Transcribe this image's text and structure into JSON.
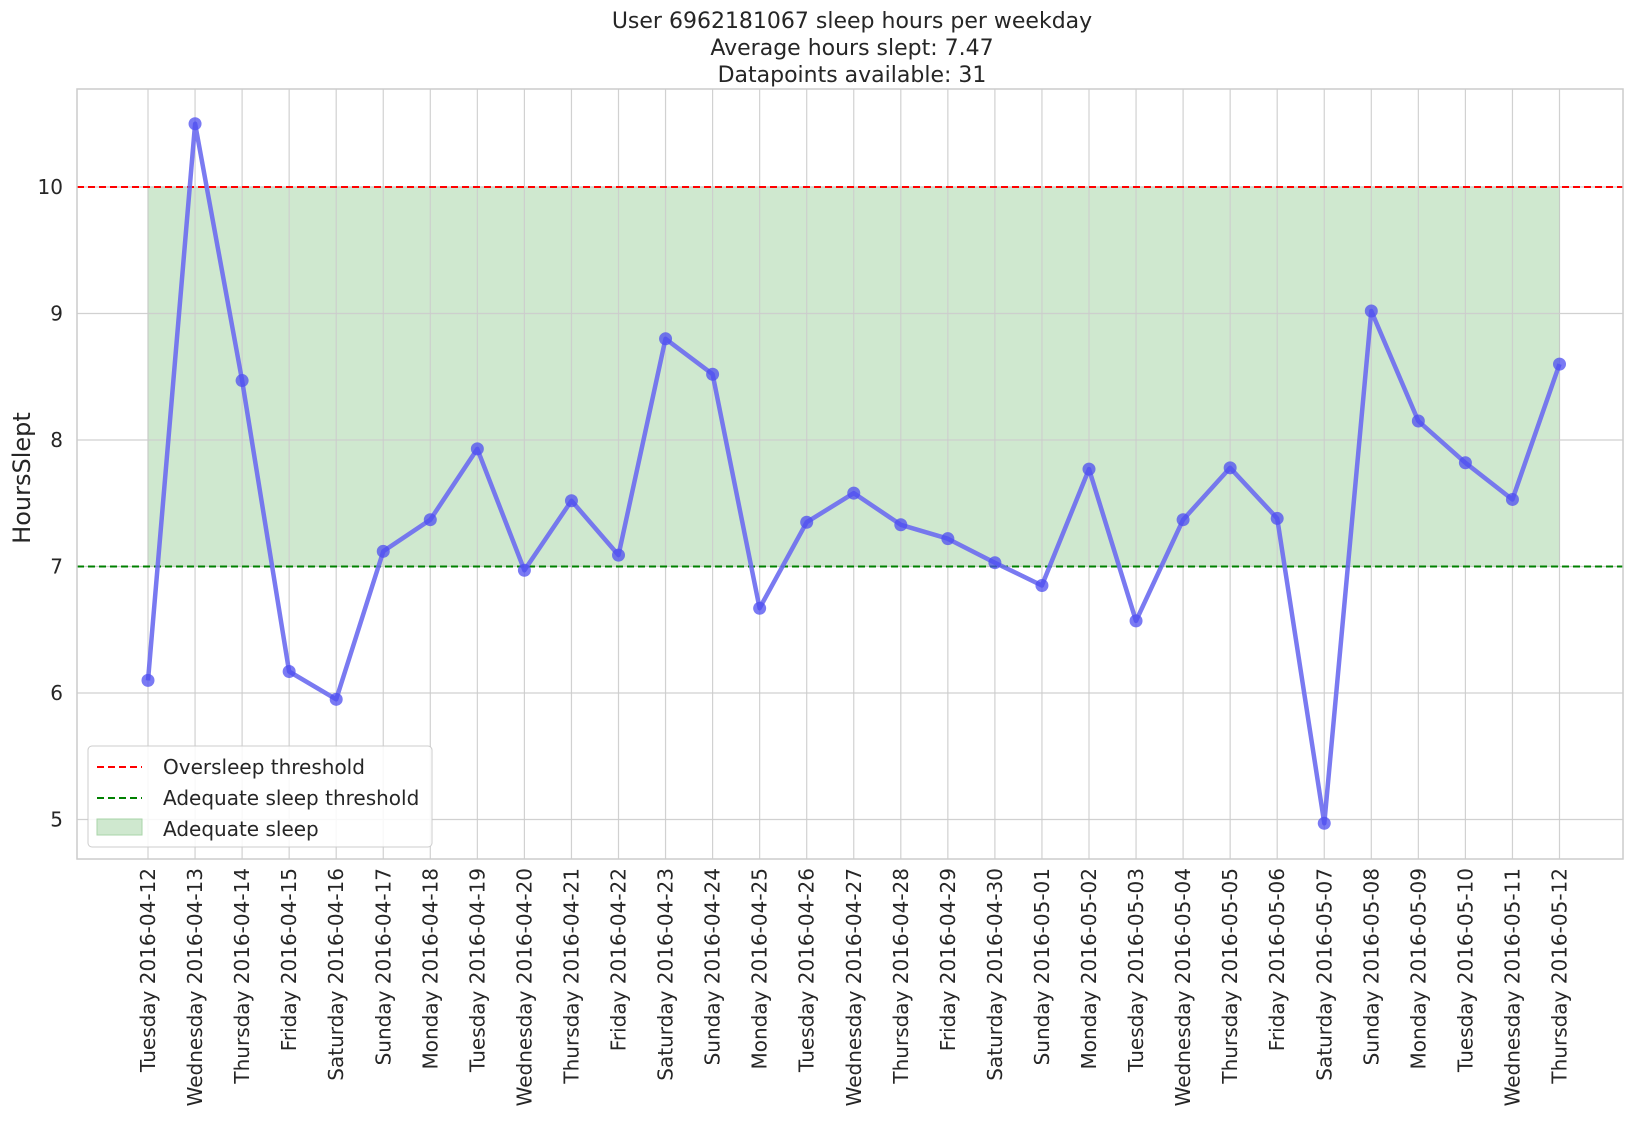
{
  "chart_data": {
    "type": "line",
    "title": [
      "User 6962181067 sleep hours per weekday",
      "Average hours slept: 7.47",
      "Datapoints available: 31"
    ],
    "xlabel": "",
    "ylabel": "HoursSlept",
    "ylim": [
      4.7,
      10.8
    ],
    "yticks": [
      5,
      6,
      7,
      8,
      9,
      10
    ],
    "grid": true,
    "legend_position": "lower-left",
    "categories": [
      "Tuesday 2016-04-12",
      "Wednesday 2016-04-13",
      "Thursday 2016-04-14",
      "Friday 2016-04-15",
      "Saturday 2016-04-16",
      "Sunday 2016-04-17",
      "Monday 2016-04-18",
      "Tuesday 2016-04-19",
      "Wednesday 2016-04-20",
      "Thursday 2016-04-21",
      "Friday 2016-04-22",
      "Saturday 2016-04-23",
      "Sunday 2016-04-24",
      "Monday 2016-04-25",
      "Tuesday 2016-04-26",
      "Wednesday 2016-04-27",
      "Thursday 2016-04-28",
      "Friday 2016-04-29",
      "Saturday 2016-04-30",
      "Sunday 2016-05-01",
      "Monday 2016-05-02",
      "Tuesday 2016-05-03",
      "Wednesday 2016-05-04",
      "Thursday 2016-05-05",
      "Friday 2016-05-06",
      "Saturday 2016-05-07",
      "Sunday 2016-05-08",
      "Monday 2016-05-09",
      "Tuesday 2016-05-10",
      "Wednesday 2016-05-11",
      "Thursday 2016-05-12"
    ],
    "series": [
      {
        "values": [
          6.1,
          10.5,
          8.47,
          6.17,
          5.95,
          7.12,
          7.37,
          7.93,
          6.97,
          7.52,
          7.09,
          8.8,
          8.52,
          6.67,
          7.35,
          7.58,
          7.33,
          7.22,
          7.03,
          6.85,
          7.77,
          6.57,
          7.37,
          7.78,
          7.38,
          4.97,
          9.02,
          8.15,
          7.82,
          7.53,
          8.6
        ],
        "color": "#6b6bf0"
      }
    ],
    "reference_lines": [
      {
        "name": "Oversleep threshold",
        "y": 10,
        "color": "#ff0000",
        "style": "dashed"
      },
      {
        "name": "Adequate sleep threshold",
        "y": 7,
        "color": "#008000",
        "style": "dashed"
      }
    ],
    "shaded_band": {
      "name": "Adequate sleep",
      "y_from": 7,
      "y_to": 10,
      "color": "#a8d5a8"
    },
    "legend": [
      "Oversleep threshold",
      "Adequate sleep threshold",
      "Adequate sleep"
    ]
  }
}
